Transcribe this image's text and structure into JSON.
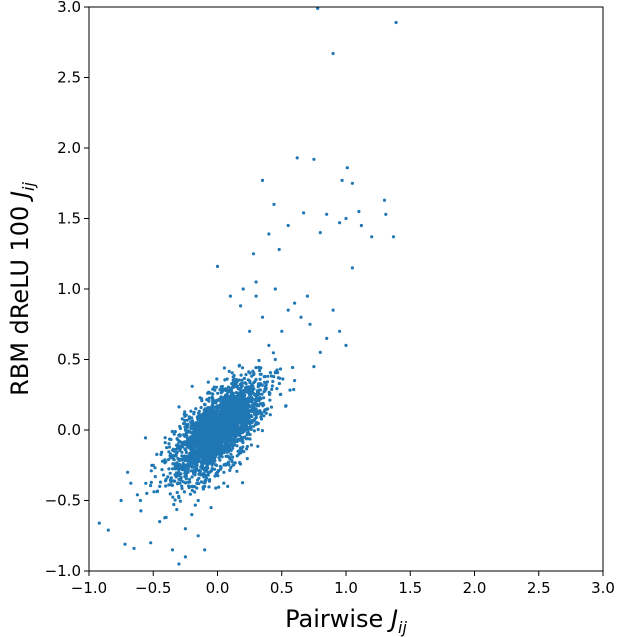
{
  "chart_data": {
    "type": "scatter",
    "xlabel_base": "Pairwise ",
    "xlabel_var": "J",
    "xlabel_sub": "ij",
    "ylabel_base": "RBM dReLU 100 ",
    "ylabel_var": "J",
    "ylabel_sub": "ij",
    "xlim": [
      -1.0,
      3.0
    ],
    "ylim": [
      -1.0,
      3.0
    ],
    "x_ticks": [
      "−1.0",
      "−0.5",
      "0.0",
      "0.5",
      "1.0",
      "1.5",
      "2.0",
      "2.5",
      "3.0"
    ],
    "x_tick_values": [
      -1.0,
      -0.5,
      0.0,
      0.5,
      1.0,
      1.5,
      2.0,
      2.5,
      3.0
    ],
    "y_ticks": [
      "−1.0",
      "−0.5",
      "0.0",
      "0.5",
      "1.0",
      "1.5",
      "2.0",
      "2.5",
      "3.0"
    ],
    "y_tick_values": [
      -1.0,
      -0.5,
      0.0,
      0.5,
      1.0,
      1.5,
      2.0,
      2.5,
      3.0
    ],
    "grid": false,
    "legend": "none",
    "color": "#1f77b4",
    "points": [
      [
        0.78,
        2.99
      ],
      [
        1.39,
        2.89
      ],
      [
        0.9,
        2.67
      ],
      [
        0.62,
        1.93
      ],
      [
        0.75,
        1.92
      ],
      [
        1.01,
        1.86
      ],
      [
        1.3,
        1.63
      ],
      [
        0.97,
        1.77
      ],
      [
        1.05,
        1.75
      ],
      [
        0.35,
        1.77
      ],
      [
        1.37,
        1.37
      ],
      [
        1.31,
        1.53
      ],
      [
        0.67,
        1.54
      ],
      [
        0.44,
        1.6
      ],
      [
        0.85,
        1.53
      ],
      [
        1.1,
        1.55
      ],
      [
        1.0,
        1.5
      ],
      [
        1.12,
        1.45
      ],
      [
        0.8,
        1.4
      ],
      [
        0.95,
        1.47
      ],
      [
        1.2,
        1.37
      ],
      [
        1.05,
        1.15
      ],
      [
        0.55,
        1.45
      ],
      [
        0.4,
        1.39
      ],
      [
        0.48,
        1.28
      ],
      [
        0.0,
        1.16
      ],
      [
        0.28,
        1.25
      ],
      [
        0.18,
        0.88
      ],
      [
        0.3,
        1.05
      ],
      [
        0.45,
        1.0
      ],
      [
        0.6,
        0.9
      ],
      [
        0.72,
        0.75
      ],
      [
        0.85,
        0.65
      ],
      [
        0.95,
        0.7
      ],
      [
        0.8,
        0.55
      ],
      [
        0.65,
        0.8
      ],
      [
        0.5,
        0.7
      ],
      [
        0.4,
        0.6
      ],
      [
        0.9,
        0.85
      ],
      [
        0.7,
        0.95
      ],
      [
        0.55,
        0.85
      ],
      [
        0.35,
        0.8
      ],
      [
        0.25,
        0.7
      ],
      [
        1.0,
        0.6
      ],
      [
        0.75,
        0.45
      ],
      [
        0.6,
        0.35
      ],
      [
        0.45,
        0.5
      ],
      [
        0.3,
        0.95
      ],
      [
        0.2,
        1.0
      ],
      [
        0.1,
        0.95
      ],
      [
        -0.52,
        -0.8
      ],
      [
        -0.65,
        -0.84
      ],
      [
        -0.7,
        -0.3
      ],
      [
        -0.55,
        -0.45
      ],
      [
        -0.45,
        -0.65
      ],
      [
        -0.35,
        -0.85
      ],
      [
        -0.25,
        -0.9
      ],
      [
        -0.15,
        -0.75
      ],
      [
        -0.1,
        -0.85
      ],
      [
        -0.3,
        -0.95
      ],
      [
        -0.6,
        -0.5
      ],
      [
        -0.5,
        -0.25
      ],
      [
        -0.4,
        -0.35
      ],
      [
        -0.75,
        -0.5
      ],
      [
        -0.2,
        -0.6
      ],
      [
        -0.05,
        -0.55
      ],
      [
        -0.85,
        -0.71
      ],
      [
        -0.92,
        -0.66
      ],
      [
        -0.72,
        -0.81
      ],
      [
        -0.4,
        -0.62
      ],
      [
        -0.25,
        -0.7
      ],
      [
        -0.1,
        -0.4
      ],
      [
        0.05,
        -0.3
      ],
      [
        0.12,
        -0.25
      ],
      [
        -0.15,
        -0.5
      ],
      [
        -0.45,
        -0.4
      ],
      [
        -0.3,
        -0.48
      ],
      [
        -0.2,
        -0.4
      ]
    ],
    "cluster": {
      "center": [
        0.0,
        0.0
      ],
      "count": 2600,
      "spread_along": 0.22,
      "spread_across": 0.1,
      "slope_deg": 45
    }
  }
}
